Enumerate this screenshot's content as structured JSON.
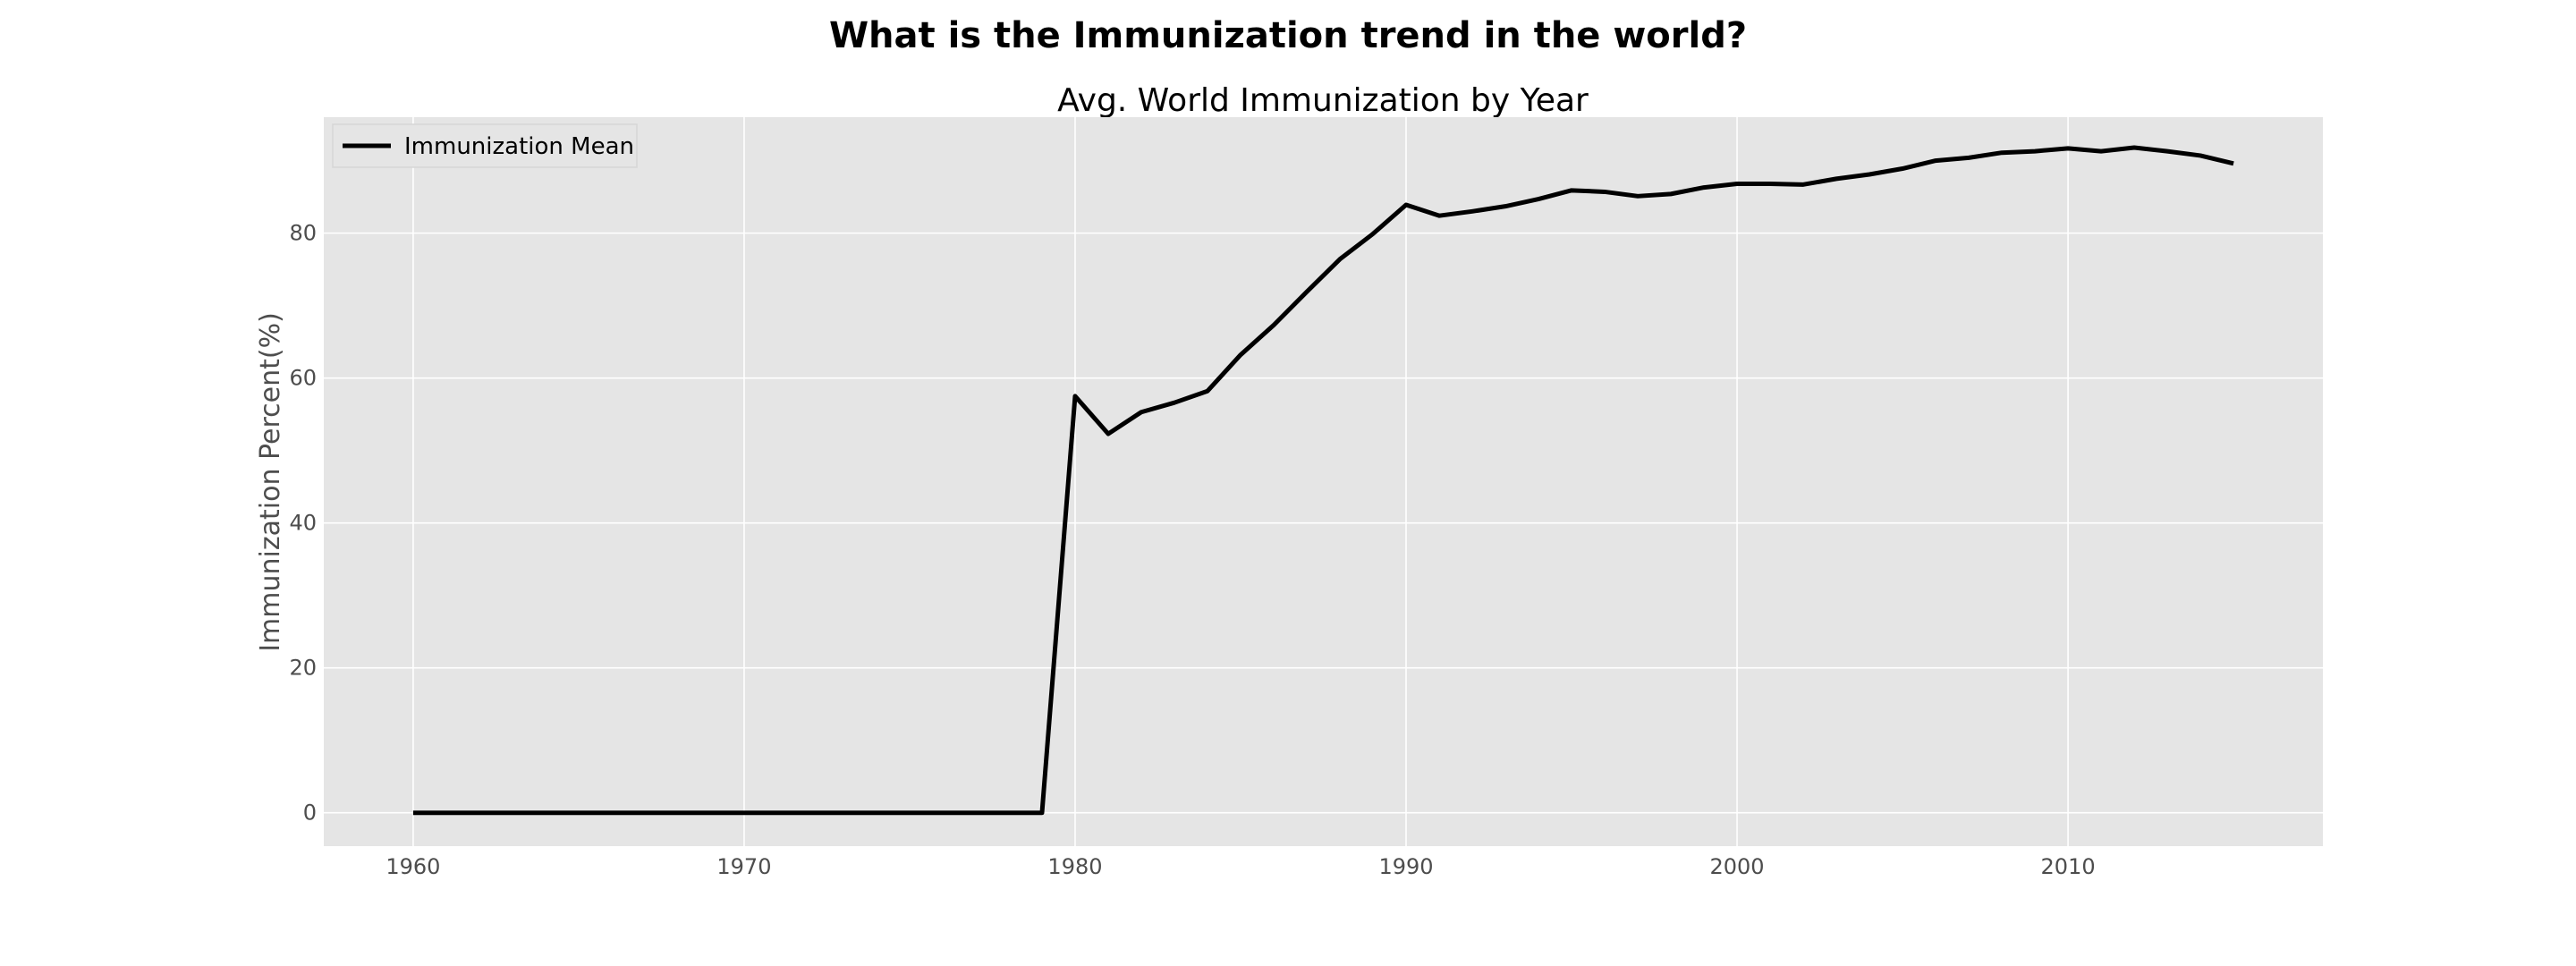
{
  "chart_data": {
    "type": "line",
    "suptitle": "What is the Immunization trend in the world?",
    "title": "Avg. World Immunization by Year",
    "xlabel": "",
    "ylabel": "Immunization Percent(%)",
    "xlim": [
      1957.3,
      2017.7
    ],
    "ylim": [
      -4.6,
      96.0
    ],
    "xticks": [
      1960,
      1970,
      1980,
      1990,
      2000,
      2010
    ],
    "yticks": [
      0,
      20,
      40,
      60,
      80
    ],
    "grid": true,
    "legend": "top-left",
    "background": "#e5e5e5",
    "line_color": "#000000",
    "series": [
      {
        "name": "Immunization Mean",
        "x": [
          1960,
          1961,
          1962,
          1963,
          1964,
          1965,
          1966,
          1967,
          1968,
          1969,
          1970,
          1971,
          1972,
          1973,
          1974,
          1975,
          1976,
          1977,
          1978,
          1979,
          1980,
          1981,
          1982,
          1983,
          1984,
          1985,
          1986,
          1987,
          1988,
          1989,
          1990,
          1991,
          1992,
          1993,
          1994,
          1995,
          1996,
          1997,
          1998,
          1999,
          2000,
          2001,
          2002,
          2003,
          2004,
          2005,
          2006,
          2007,
          2008,
          2009,
          2010,
          2011,
          2012,
          2013,
          2014,
          2015
        ],
        "y": [
          0,
          0,
          0,
          0,
          0,
          0,
          0,
          0,
          0,
          0,
          0,
          0,
          0,
          0,
          0,
          0,
          0,
          0,
          0,
          0,
          57.5,
          52.3,
          55.3,
          56.6,
          58.2,
          63.2,
          67.3,
          71.9,
          76.4,
          79.9,
          83.9,
          82.4,
          83.0,
          83.7,
          84.7,
          85.9,
          85.7,
          85.1,
          85.4,
          86.3,
          86.8,
          86.8,
          86.7,
          87.5,
          88.1,
          88.9,
          90.0,
          90.4,
          91.1,
          91.3,
          91.7,
          91.3,
          91.8,
          91.3,
          90.7,
          89.6
        ]
      }
    ]
  }
}
